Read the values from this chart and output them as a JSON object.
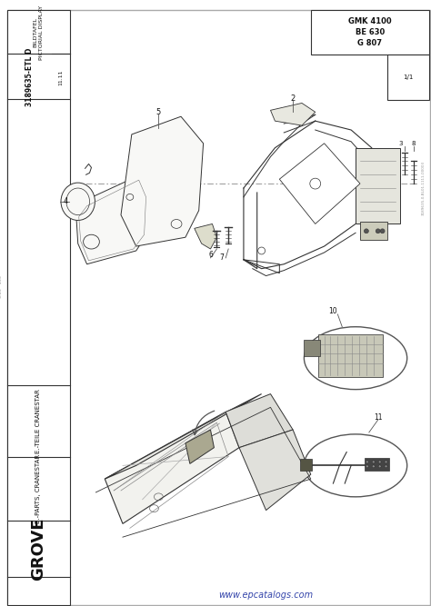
{
  "page_bg": "#ffffff",
  "content_bg": "#ffffff",
  "border_color": "#333333",
  "line_color": "#444444",
  "light_line": "#888888",
  "header": {
    "model": "GMK 4100\nBE 630\nG 807",
    "bildtafel": "BILDTAFEL\nPICTORIAL DISPLAY",
    "drawing_num": "3189635-ETL D",
    "sheet": "11.11",
    "page": "1/1"
  },
  "left_labels": {
    "german": "E.-TEILE CRANESTAR",
    "english": "E.-PARTS, CRANESTAR"
  },
  "brand": "GROVE",
  "website": "www.epcatalogs.com",
  "right_code": "3189635-0-BL01-1111-00003"
}
